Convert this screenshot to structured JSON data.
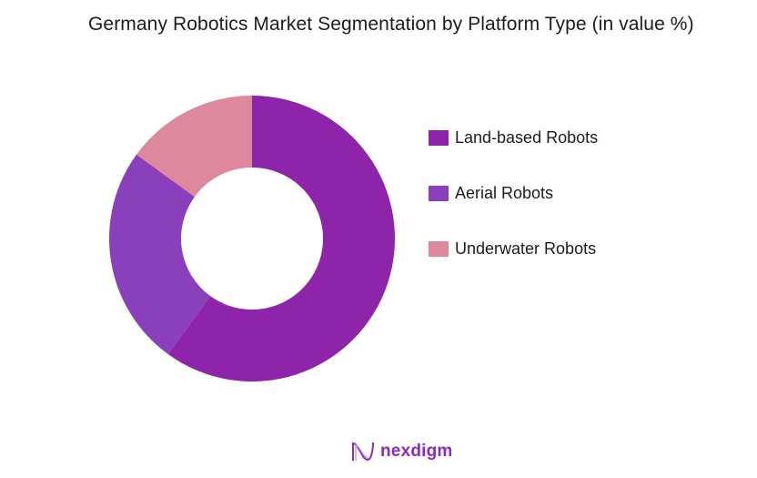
{
  "title": "Germany Robotics Market Segmentation by Platform Type (in value %)",
  "logo": {
    "text": "nexdigm",
    "icon": "nexdigm-wave-logo-icon"
  },
  "legend": [
    {
      "label": "Land-based Robots",
      "color": "#8e24aa"
    },
    {
      "label": "Aerial Robots",
      "color": "#8a40bb"
    },
    {
      "label": "Underwater Robots",
      "color": "#de889d"
    }
  ],
  "chart_data": {
    "type": "pie",
    "subtype": "donut",
    "title": "Germany Robotics Market Segmentation by Platform Type (in value %)",
    "categories": [
      "Land-based Robots",
      "Aerial Robots",
      "Underwater Robots"
    ],
    "values": [
      60,
      25,
      15
    ],
    "colors": [
      "#8e24aa",
      "#8a40bb",
      "#de889d"
    ],
    "legend_position": "right",
    "data_labels": false
  }
}
